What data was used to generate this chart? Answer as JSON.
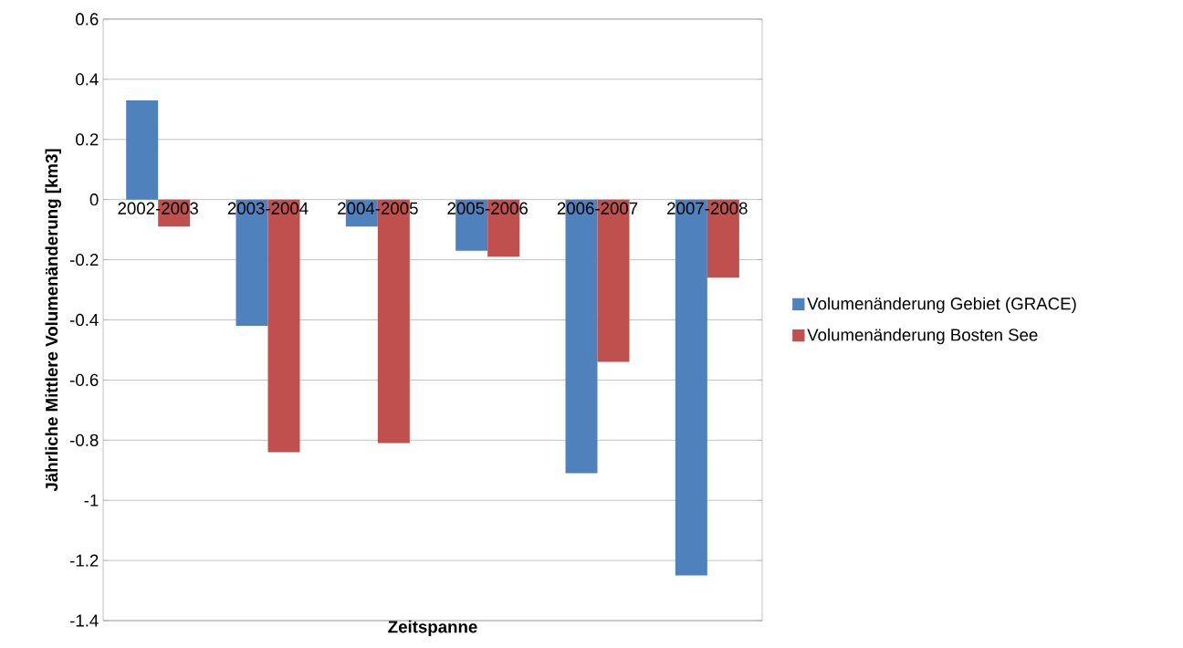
{
  "chart_data": {
    "type": "bar",
    "xlabel": "Zeitspanne",
    "ylabel": "Jährliche Mittlere Volumenänderung [km3]",
    "categories": [
      "2002-2003",
      "2003-2004",
      "2004-2005",
      "2005-2006",
      "2006-2007",
      "2007-2008"
    ],
    "series": [
      {
        "name": "Volumenänderung Gebiet (GRACE)",
        "color": "#4f81bd",
        "values": [
          0.33,
          -0.42,
          -0.09,
          -0.17,
          -0.91,
          -1.25
        ]
      },
      {
        "name": "Volumenänderung Bosten See",
        "color": "#c0504d",
        "values": [
          -0.09,
          -0.84,
          -0.81,
          -0.19,
          -0.54,
          -0.26
        ]
      }
    ],
    "ylim": [
      -1.4,
      0.6
    ],
    "yticks": [
      -1.4,
      -1.2,
      -1,
      -0.8,
      -0.6,
      -0.4,
      -0.2,
      0,
      0.2,
      0.4,
      0.6
    ],
    "grid": "y",
    "legend": "right"
  }
}
